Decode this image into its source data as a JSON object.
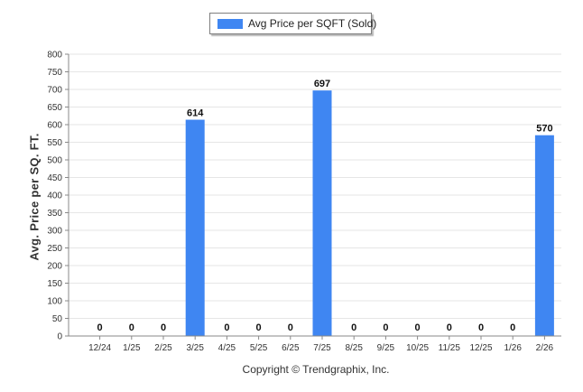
{
  "chart_data": {
    "type": "bar",
    "legend": "Avg Price per SQFT (Sold)",
    "ylabel": "Avg. Price per SQ. FT.",
    "xlabel": "",
    "footer": "Copyright © Trendgraphix, Inc.",
    "categories": [
      "12/24",
      "1/25",
      "2/25",
      "3/25",
      "4/25",
      "5/25",
      "6/25",
      "7/25",
      "8/25",
      "9/25",
      "10/25",
      "11/25",
      "12/25",
      "1/26",
      "2/26"
    ],
    "series": [
      {
        "name": "Avg Price per SQFT (Sold)",
        "values": [
          0,
          0,
          0,
          614,
          0,
          0,
          0,
          697,
          0,
          0,
          0,
          0,
          0,
          0,
          570
        ]
      }
    ],
    "ylim": [
      0,
      800
    ],
    "yticks": [
      0,
      50,
      100,
      150,
      200,
      250,
      300,
      350,
      400,
      450,
      500,
      550,
      600,
      650,
      700,
      750,
      800
    ],
    "grid": true,
    "legend_position": "top-center",
    "bar_color": "#3f86f2"
  }
}
